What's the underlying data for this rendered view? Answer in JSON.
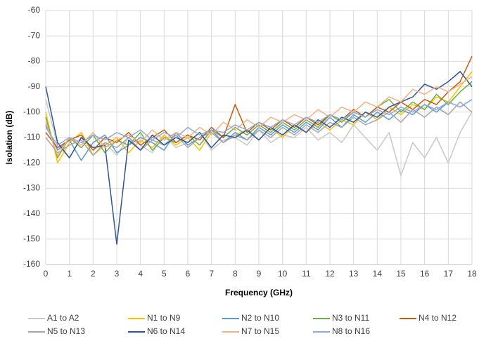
{
  "chart_data": {
    "type": "line",
    "x_label": "Frequency (GHz)",
    "y_label": "Isolation (dB)",
    "x": [
      0,
      0.5,
      1,
      1.5,
      2,
      2.5,
      3,
      3.5,
      4,
      4.5,
      5,
      5.5,
      6,
      6.5,
      7,
      7.5,
      8,
      8.5,
      9,
      9.5,
      10,
      10.5,
      11,
      11.5,
      12,
      12.5,
      13,
      13.5,
      14,
      14.5,
      15,
      15.5,
      16,
      16.5,
      17,
      17.5,
      18
    ],
    "xlim": [
      0,
      18
    ],
    "xticks": [
      0,
      1,
      2,
      3,
      4,
      5,
      6,
      7,
      8,
      9,
      10,
      11,
      12,
      13,
      14,
      15,
      16,
      17,
      18
    ],
    "ylim": [
      -160,
      -60
    ],
    "yticks": [
      -160,
      -150,
      -140,
      -130,
      -120,
      -110,
      -100,
      -90,
      -80,
      -70,
      -60
    ],
    "grid": true,
    "legend": "bottom",
    "series": [
      {
        "name": "A1 to A2",
        "color": "#c8c8c8",
        "values": [
          -95,
          -113,
          -118,
          -110,
          -115,
          -112,
          -117,
          -110,
          -113,
          -116,
          -109,
          -114,
          -112,
          -108,
          -115,
          -111,
          -110,
          -113,
          -107,
          -112,
          -109,
          -110,
          -106,
          -111,
          -108,
          -112,
          -105,
          -110,
          -115,
          -108,
          -125,
          -112,
          -118,
          -110,
          -120,
          -108,
          -100
        ]
      },
      {
        "name": "N1 to N9",
        "color": "#ffc000",
        "values": [
          -100,
          -120,
          -112,
          -108,
          -117,
          -113,
          -110,
          -116,
          -111,
          -114,
          -109,
          -113,
          -110,
          -115,
          -108,
          -112,
          -109,
          -107,
          -111,
          -106,
          -110,
          -105,
          -108,
          -104,
          -107,
          -103,
          -105,
          -100,
          -103,
          -98,
          -101,
          -97,
          -99,
          -94,
          -96,
          -90,
          -84
        ]
      },
      {
        "name": "N2 to N10",
        "color": "#5b9bd5",
        "values": [
          -105,
          -115,
          -111,
          -119,
          -112,
          -109,
          -116,
          -113,
          -110,
          -112,
          -115,
          -108,
          -113,
          -110,
          -107,
          -112,
          -108,
          -111,
          -106,
          -109,
          -105,
          -108,
          -104,
          -107,
          -102,
          -106,
          -101,
          -104,
          -100,
          -103,
          -99,
          -101,
          -97,
          -100,
          -96,
          -98,
          -95
        ]
      },
      {
        "name": "N3 to N11",
        "color": "#70ad47",
        "values": [
          -102,
          -118,
          -110,
          -114,
          -109,
          -116,
          -111,
          -113,
          -108,
          -115,
          -110,
          -112,
          -109,
          -113,
          -107,
          -110,
          -106,
          -109,
          -105,
          -108,
          -104,
          -107,
          -103,
          -106,
          -101,
          -104,
          -100,
          -102,
          -98,
          -95,
          -100,
          -96,
          -99,
          -93,
          -97,
          -92,
          -88
        ]
      },
      {
        "name": "N4 to N12",
        "color": "#c55a11",
        "values": [
          -108,
          -114,
          -111,
          -109,
          -115,
          -110,
          -112,
          -108,
          -113,
          -110,
          -107,
          -112,
          -109,
          -111,
          -106,
          -110,
          -97,
          -108,
          -104,
          -107,
          -103,
          -106,
          -102,
          -105,
          -101,
          -103,
          -99,
          -102,
          -98,
          -100,
          -96,
          -99,
          -95,
          -97,
          -92,
          -88,
          -78
        ]
      },
      {
        "name": "N5 to N13",
        "color": "#a5a5a5",
        "values": [
          -110,
          -116,
          -113,
          -111,
          -117,
          -112,
          -114,
          -110,
          -115,
          -111,
          -113,
          -109,
          -114,
          -110,
          -108,
          -112,
          -109,
          -111,
          -107,
          -110,
          -106,
          -109,
          -105,
          -108,
          -104,
          -106,
          -102,
          -105,
          -103,
          -100,
          -104,
          -99,
          -102,
          -98,
          -101,
          -96,
          -100
        ]
      },
      {
        "name": "N6 to N14",
        "color": "#2f5597",
        "values": [
          -90,
          -112,
          -118,
          -110,
          -114,
          -113,
          -152,
          -111,
          -115,
          -109,
          -113,
          -110,
          -112,
          -108,
          -114,
          -109,
          -110,
          -107,
          -111,
          -106,
          -109,
          -105,
          -108,
          -103,
          -106,
          -102,
          -104,
          -100,
          -102,
          -98,
          -96,
          -94,
          -89,
          -91,
          -88,
          -84,
          -90
        ]
      },
      {
        "name": "N7 to N15",
        "color": "#f4b183",
        "values": [
          -104,
          -117,
          -110,
          -113,
          -108,
          -114,
          -111,
          -109,
          -112,
          -107,
          -111,
          -108,
          -110,
          -106,
          -109,
          -104,
          -107,
          -103,
          -106,
          -102,
          -104,
          -101,
          -103,
          -99,
          -102,
          -98,
          -100,
          -96,
          -98,
          -94,
          -96,
          -91,
          -93,
          -90,
          -92,
          -89,
          -86
        ]
      },
      {
        "name": "N8 to N16",
        "color": "#8faadc",
        "values": [
          -106,
          -113,
          -110,
          -112,
          -109,
          -111,
          -108,
          -110,
          -107,
          -111,
          -108,
          -110,
          -106,
          -109,
          -107,
          -108,
          -105,
          -107,
          -104,
          -106,
          -103,
          -105,
          -102,
          -104,
          -101,
          -103,
          -100,
          -102,
          -99,
          -101,
          -98,
          -100,
          -97,
          -99,
          -96,
          -98,
          -95
        ]
      }
    ]
  }
}
